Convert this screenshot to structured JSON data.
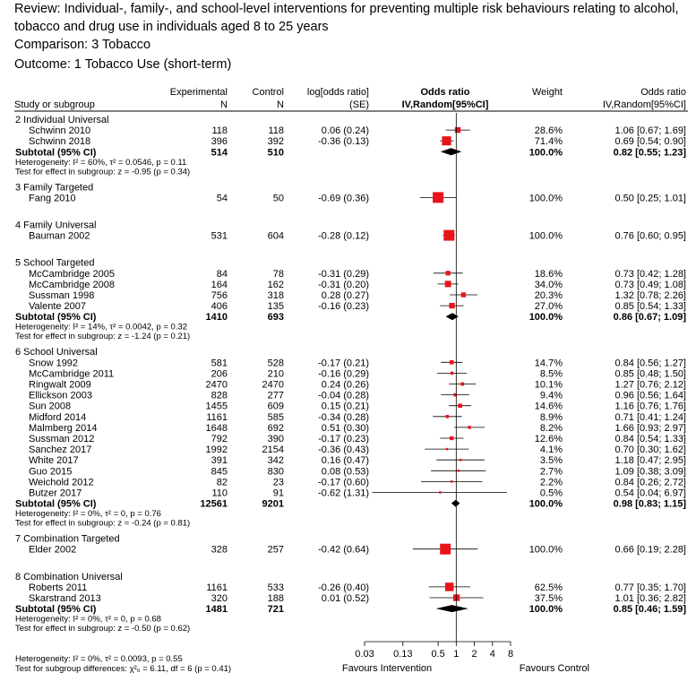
{
  "header": {
    "review_line1": "Review: Individual-, family-, and school-level interventions for preventing multiple risk behaviours relating to alcohol,",
    "review_line2": "tobacco and drug use in individuals aged 8 to 25 years",
    "comparison": "Comparison: 3 Tobacco",
    "outcome": "Outcome: 1 Tobacco Use (short-term)"
  },
  "chart_data": {
    "type": "forest",
    "scale": "log",
    "xlim": [
      0.03,
      8
    ],
    "xticks": [
      "0.03",
      "0.13",
      "0.5",
      "1",
      "2",
      "4",
      "8"
    ],
    "null_value": 1,
    "xlabel_left": "Favours Intervention",
    "xlabel_right": "Favours Control",
    "columns": {
      "study": "Study or subgroup",
      "exp": [
        "Experimental",
        "N"
      ],
      "ctrl": [
        "Control",
        "N"
      ],
      "logor": [
        "log[odds ratio]",
        "(SE)"
      ],
      "or": [
        "Odds ratio",
        "IV,Random[95%CI]"
      ],
      "weight": [
        "",
        "Weight"
      ],
      "orci": [
        "Odds ratio",
        "IV,Random[95%CI]"
      ]
    },
    "groups": [
      {
        "title": "2 Individual Universal",
        "studies": [
          {
            "name": "Schwinn 2010",
            "exp": "118",
            "ctrl": "118",
            "logor": "0.06 (0.24)",
            "weight": "28.6%",
            "ci": "1.06 [0.67; 1.69]",
            "or": 1.06,
            "lo": 0.67,
            "hi": 1.69,
            "w": 28.6
          },
          {
            "name": "Schwinn 2018",
            "exp": "396",
            "ctrl": "392",
            "logor": "-0.36 (0.13)",
            "weight": "71.4%",
            "ci": "0.69 [0.54; 0.90]",
            "or": 0.69,
            "lo": 0.54,
            "hi": 0.9,
            "w": 71.4
          }
        ],
        "subtotal": {
          "label": "Subtotal (95% CI)",
          "exp": "514",
          "ctrl": "510",
          "weight": "100.0%",
          "ci": "0.82 [0.55; 1.23]",
          "or": 0.82,
          "lo": 0.55,
          "hi": 1.23
        },
        "het": "Heterogeneity: I² = 60%, τ² = 0.0546, p = 0.11",
        "test": "Test for effect in subgroup: z = -0.95 (p = 0.34)"
      },
      {
        "title": "3 Family Targeted",
        "studies": [
          {
            "name": "Fang 2010",
            "exp": "54",
            "ctrl": "50",
            "logor": "-0.69 (0.36)",
            "weight": "100.0%",
            "ci": "0.50 [0.25; 1.01]",
            "or": 0.5,
            "lo": 0.25,
            "hi": 1.01,
            "w": 100
          }
        ]
      },
      {
        "title": "4 Family Universal",
        "studies": [
          {
            "name": "Bauman 2002",
            "exp": "531",
            "ctrl": "604",
            "logor": "-0.28 (0.12)",
            "weight": "100.0%",
            "ci": "0.76 [0.60; 0.95]",
            "or": 0.76,
            "lo": 0.6,
            "hi": 0.95,
            "w": 100
          }
        ]
      },
      {
        "title": "5 School Targeted",
        "studies": [
          {
            "name": "McCambridge 2005",
            "exp": "84",
            "ctrl": "78",
            "logor": "-0.31 (0.29)",
            "weight": "18.6%",
            "ci": "0.73 [0.42; 1.28]",
            "or": 0.73,
            "lo": 0.42,
            "hi": 1.28,
            "w": 18.6
          },
          {
            "name": "McCambridge 2008",
            "exp": "164",
            "ctrl": "162",
            "logor": "-0.31 (0.20)",
            "weight": "34.0%",
            "ci": "0.73 [0.49; 1.08]",
            "or": 0.73,
            "lo": 0.49,
            "hi": 1.08,
            "w": 34.0
          },
          {
            "name": "Sussman 1998",
            "exp": "756",
            "ctrl": "318",
            "logor": "0.28 (0.27)",
            "weight": "20.3%",
            "ci": "1.32 [0.78; 2.26]",
            "or": 1.32,
            "lo": 0.78,
            "hi": 2.26,
            "w": 20.3
          },
          {
            "name": "Valente 2007",
            "exp": "406",
            "ctrl": "135",
            "logor": "-0.16 (0.23)",
            "weight": "27.0%",
            "ci": "0.85 [0.54; 1.33]",
            "or": 0.85,
            "lo": 0.54,
            "hi": 1.33,
            "w": 27.0
          }
        ],
        "subtotal": {
          "label": "Subtotal (95% CI)",
          "exp": "1410",
          "ctrl": "693",
          "weight": "100.0%",
          "ci": "0.86 [0.67; 1.09]",
          "or": 0.86,
          "lo": 0.67,
          "hi": 1.09
        },
        "het": "Heterogeneity: I² = 14%, τ² = 0.0042, p = 0.32",
        "test": "Test for effect in subgroup: z = -1.24 (p = 0.21)"
      },
      {
        "title": "6 School Universal",
        "studies": [
          {
            "name": "Snow 1992",
            "exp": "581",
            "ctrl": "528",
            "logor": "-0.17 (0.21)",
            "weight": "14.7%",
            "ci": "0.84 [0.56; 1.27]",
            "or": 0.84,
            "lo": 0.56,
            "hi": 1.27,
            "w": 14.7
          },
          {
            "name": "McCambridge 2011",
            "exp": "206",
            "ctrl": "210",
            "logor": "-0.16 (0.29)",
            "weight": "8.5%",
            "ci": "0.85 [0.48; 1.50]",
            "or": 0.85,
            "lo": 0.48,
            "hi": 1.5,
            "w": 8.5
          },
          {
            "name": "Ringwalt 2009",
            "exp": "2470",
            "ctrl": "2470",
            "logor": "0.24 (0.26)",
            "weight": "10.1%",
            "ci": "1.27 [0.76; 2.12]",
            "or": 1.27,
            "lo": 0.76,
            "hi": 2.12,
            "w": 10.1
          },
          {
            "name": "Ellickson 2003",
            "exp": "828",
            "ctrl": "277",
            "logor": "-0.04 (0.28)",
            "weight": "9.4%",
            "ci": "0.96 [0.56; 1.64]",
            "or": 0.96,
            "lo": 0.56,
            "hi": 1.64,
            "w": 9.4
          },
          {
            "name": "Sun 2008",
            "exp": "1455",
            "ctrl": "609",
            "logor": "0.15 (0.21)",
            "weight": "14.6%",
            "ci": "1.16 [0.76; 1.76]",
            "or": 1.16,
            "lo": 0.76,
            "hi": 1.76,
            "w": 14.6
          },
          {
            "name": "Midford 2014",
            "exp": "1161",
            "ctrl": "585",
            "logor": "-0.34 (0.28)",
            "weight": "8.9%",
            "ci": "0.71 [0.41; 1.24]",
            "or": 0.71,
            "lo": 0.41,
            "hi": 1.24,
            "w": 8.9
          },
          {
            "name": "Malmberg 2014",
            "exp": "1648",
            "ctrl": "692",
            "logor": "0.51 (0.30)",
            "weight": "8.2%",
            "ci": "1.66 [0.93; 2.97]",
            "or": 1.66,
            "lo": 0.93,
            "hi": 2.97,
            "w": 8.2
          },
          {
            "name": "Sussman 2012",
            "exp": "792",
            "ctrl": "390",
            "logor": "-0.17 (0.23)",
            "weight": "12.6%",
            "ci": "0.84 [0.54; 1.33]",
            "or": 0.84,
            "lo": 0.54,
            "hi": 1.33,
            "w": 12.6
          },
          {
            "name": "Sanchez 2017",
            "exp": "1992",
            "ctrl": "2154",
            "logor": "-0.36 (0.43)",
            "weight": "4.1%",
            "ci": "0.70 [0.30; 1.62]",
            "or": 0.7,
            "lo": 0.3,
            "hi": 1.62,
            "w": 4.1
          },
          {
            "name": "White 2017",
            "exp": "391",
            "ctrl": "342",
            "logor": "0.16 (0.47)",
            "weight": "3.5%",
            "ci": "1.18 [0.47; 2.95]",
            "or": 1.18,
            "lo": 0.47,
            "hi": 2.95,
            "w": 3.5
          },
          {
            "name": "Guo 2015",
            "exp": "845",
            "ctrl": "830",
            "logor": "0.08 (0.53)",
            "weight": "2.7%",
            "ci": "1.09 [0.38; 3.09]",
            "or": 1.09,
            "lo": 0.38,
            "hi": 3.09,
            "w": 2.7
          },
          {
            "name": "Weichold 2012",
            "exp": "82",
            "ctrl": "23",
            "logor": "-0.17 (0.60)",
            "weight": "2.2%",
            "ci": "0.84 [0.26; 2.72]",
            "or": 0.84,
            "lo": 0.26,
            "hi": 2.72,
            "w": 2.2
          },
          {
            "name": "Butzer 2017",
            "exp": "110",
            "ctrl": "91",
            "logor": "-0.62 (1.31)",
            "weight": "0.5%",
            "ci": "0.54 [0.04; 6.97]",
            "or": 0.54,
            "lo": 0.04,
            "hi": 6.97,
            "w": 0.5
          }
        ],
        "subtotal": {
          "label": "Subtotal (95% CI)",
          "exp": "12561",
          "ctrl": "9201",
          "weight": "100.0%",
          "ci": "0.98 [0.83; 1.15]",
          "or": 0.98,
          "lo": 0.83,
          "hi": 1.15
        },
        "het": "Heterogeneity: I² = 0%, τ² = 0, p = 0.76",
        "test": "Test for effect in subgroup: z = -0.24 (p = 0.81)"
      },
      {
        "title": "7 Combination Targeted",
        "studies": [
          {
            "name": "Elder 2002",
            "exp": "328",
            "ctrl": "257",
            "logor": "-0.42 (0.64)",
            "weight": "100.0%",
            "ci": "0.66 [0.19; 2.28]",
            "or": 0.66,
            "lo": 0.19,
            "hi": 2.28,
            "w": 100
          }
        ]
      },
      {
        "title": "8 Combination Universal",
        "studies": [
          {
            "name": "Roberts 2011",
            "exp": "1161",
            "ctrl": "533",
            "logor": "-0.26 (0.40)",
            "weight": "62.5%",
            "ci": "0.77 [0.35; 1.70]",
            "or": 0.77,
            "lo": 0.35,
            "hi": 1.7,
            "w": 62.5
          },
          {
            "name": "Skarstrand 2013",
            "exp": "320",
            "ctrl": "188",
            "logor": "0.01 (0.52)",
            "weight": "37.5%",
            "ci": "1.01 [0.36; 2.82]",
            "or": 1.01,
            "lo": 0.36,
            "hi": 2.82,
            "w": 37.5
          }
        ],
        "subtotal": {
          "label": "Subtotal (95% CI)",
          "exp": "1481",
          "ctrl": "721",
          "weight": "100.0%",
          "ci": "0.85 [0.46; 1.59]",
          "or": 0.85,
          "lo": 0.46,
          "hi": 1.59
        },
        "het": "Heterogeneity: I² = 0%, τ² = 0, p = 0.68",
        "test": "Test for effect in subgroup: z = -0.50 (p = 0.62)"
      }
    ],
    "footer": {
      "het": "Heterogeneity: I² = 0%, τ² = 0.0093, p = 0.55",
      "test": "Test for subgroup differences: χ²₆ = 6.11, df = 6 (p = 0.41)"
    },
    "colors": {
      "square": "#e8141b",
      "diamond": "#000000",
      "line": "#000000"
    }
  }
}
